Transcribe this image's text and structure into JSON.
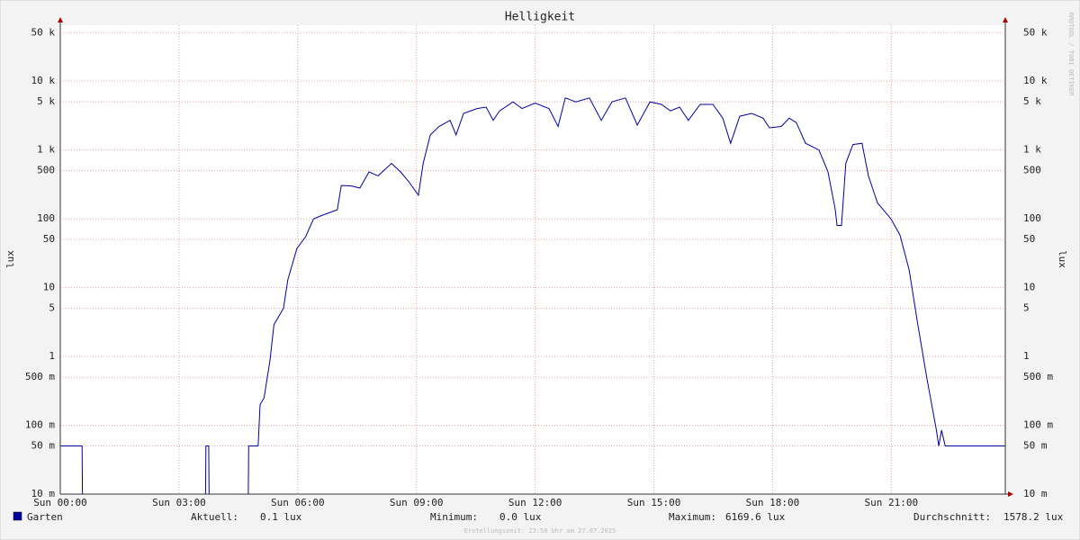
{
  "chart_data": {
    "type": "line",
    "title": "Helligkeit",
    "y_label": "lux",
    "watermark": "RRDTOOL / TOBI OETIKER",
    "footer": "Erstellungszeit: 23:58 Uhr am 27.07.2025",
    "log_scale": true,
    "grid": true,
    "xlim": [
      0,
      23.88
    ],
    "ylim": [
      0.01,
      65000
    ],
    "xticks": [
      {
        "value": 0,
        "label": "Sun 00:00"
      },
      {
        "value": 3,
        "label": "Sun 03:00"
      },
      {
        "value": 6,
        "label": "Sun 06:00"
      },
      {
        "value": 9,
        "label": "Sun 09:00"
      },
      {
        "value": 12,
        "label": "Sun 12:00"
      },
      {
        "value": 15,
        "label": "Sun 15:00"
      },
      {
        "value": 18,
        "label": "Sun 18:00"
      },
      {
        "value": 21,
        "label": "Sun 21:00"
      }
    ],
    "yticks": [
      {
        "value": 0.01,
        "label": "10 m"
      },
      {
        "value": 0.05,
        "label": "50 m"
      },
      {
        "value": 0.1,
        "label": "100 m"
      },
      {
        "value": 0.5,
        "label": "500 m"
      },
      1,
      5,
      10,
      50,
      100,
      500,
      {
        "value": 1000,
        "label": "1 k"
      },
      {
        "value": 5000,
        "label": "5 k"
      },
      {
        "value": 10000,
        "label": "10 k"
      },
      {
        "value": 50000,
        "label": "50 k"
      }
    ],
    "x": [
      0,
      0.55,
      0.56,
      3.67,
      3.68,
      3.75,
      3.76,
      4.75,
      4.76,
      5.0,
      5.05,
      5.15,
      5.3,
      5.4,
      5.64,
      5.75,
      5.98,
      6.2,
      6.4,
      6.66,
      7.0,
      7.1,
      7.35,
      7.57,
      7.8,
      8.03,
      8.37,
      8.6,
      8.8,
      9.05,
      9.17,
      9.35,
      9.57,
      9.85,
      10.0,
      10.19,
      10.53,
      10.76,
      10.94,
      11.1,
      11.44,
      11.67,
      12.0,
      12.35,
      12.58,
      12.76,
      13.03,
      13.37,
      13.67,
      13.94,
      14.28,
      14.58,
      14.9,
      15.19,
      15.42,
      15.65,
      15.87,
      16.17,
      16.49,
      16.74,
      16.94,
      17.17,
      17.47,
      17.76,
      17.92,
      18.22,
      18.42,
      18.6,
      18.83,
      19.17,
      19.4,
      19.58,
      19.63,
      19.74,
      19.85,
      20.03,
      20.26,
      20.42,
      20.65,
      20.99,
      21.22,
      21.45,
      21.67,
      21.9,
      22.13,
      22.2,
      22.27,
      22.36,
      23.88
    ],
    "series": [
      {
        "name": "Garten",
        "color": "#0000a0",
        "values": [
          0.05,
          0.05,
          0,
          0,
          0.05,
          0.05,
          0,
          0,
          0.05,
          0.05,
          0.2,
          0.25,
          0.88,
          2.9,
          5,
          13,
          37,
          55,
          100,
          115,
          135,
          305,
          300,
          280,
          480,
          420,
          640,
          480,
          350,
          220,
          640,
          1650,
          2200,
          2700,
          1650,
          3400,
          4000,
          4200,
          2700,
          3700,
          5000,
          4000,
          4800,
          4000,
          2200,
          5700,
          5000,
          5700,
          2700,
          5000,
          5700,
          2300,
          5000,
          4600,
          3700,
          4200,
          2700,
          4600,
          4600,
          2900,
          1250,
          3100,
          3400,
          2900,
          2100,
          2200,
          2900,
          2500,
          1250,
          1000,
          480,
          140,
          80,
          80,
          640,
          1200,
          1250,
          420,
          170,
          100,
          58,
          18,
          2.9,
          0.48,
          0.09,
          0.05,
          0.085,
          0.05,
          0.05
        ]
      }
    ],
    "stats": [
      {
        "label": "Aktuell:",
        "value": "0.1 lux"
      },
      {
        "label": "Minimum:",
        "value": "0.0 lux"
      },
      {
        "label": "Maximum:",
        "value": "6169.6 lux"
      },
      {
        "label": "Durchschnitt:",
        "value": "1578.2 lux"
      }
    ]
  }
}
